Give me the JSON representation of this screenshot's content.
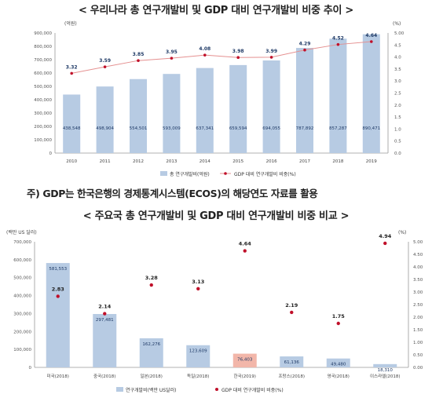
{
  "titles": {
    "top": "< 우리나라 총 연구개발비 및 GDP 대비 연구개발비 비중 추이 >",
    "bottom": "< 주요국 총 연구개발비 및 GDP 대비 연구개발비 비중 비교 >"
  },
  "note": "주) GDP는 한국은행의 경제통계시스템(ECOS)의 해당연도 자료를 활용",
  "colors": {
    "bar": "#b7cbe3",
    "bar_highlight": "#f2b6a9",
    "line": "#e59090",
    "dot": "#c0102a"
  },
  "chart_data": [
    {
      "type": "bar",
      "ylabel_left": "(억원)",
      "ylabel_right": "(%)",
      "ylim": [
        0,
        900000
      ],
      "ylim_right": [
        0,
        5.0
      ],
      "left_ticks": [
        "0",
        "100,000",
        "200,000",
        "300,000",
        "400,000",
        "500,000",
        "600,000",
        "700,000",
        "800,000",
        "900,000"
      ],
      "right_ticks": [
        "0.0",
        "0.5",
        "1.0",
        "1.5",
        "2.0",
        "2.5",
        "3.0",
        "3.5",
        "4.0",
        "4.5",
        "5.00"
      ],
      "categories": [
        "2010",
        "2011",
        "2012",
        "2013",
        "2014",
        "2015",
        "2016",
        "2017",
        "2018",
        "2019"
      ],
      "series": [
        {
          "name": "총 연구개발비(억원)",
          "values": [
            438548,
            498904,
            554501,
            593009,
            637341,
            659594,
            694055,
            787892,
            857287,
            890471
          ],
          "labels": [
            "438,548",
            "498,904",
            "554,501",
            "593,009",
            "637,341",
            "659,594",
            "694,055",
            "787,892",
            "857,287",
            "890,471"
          ]
        },
        {
          "name": "GDP 대비 연구개발비 비중(%)",
          "values": [
            3.32,
            3.59,
            3.85,
            3.95,
            4.08,
            3.98,
            3.99,
            4.29,
            4.52,
            4.64
          ],
          "labels": [
            "3.32",
            "3.59",
            "3.85",
            "3.95",
            "4.08",
            "3.98",
            "3.99",
            "4.29",
            "4.52",
            "4.64"
          ]
        }
      ],
      "grid": false,
      "legend_position": "bottom"
    },
    {
      "type": "bar",
      "ylabel_left": "(백만 US 달러)",
      "ylabel_right": "(%)",
      "ylim": [
        0,
        700000
      ],
      "ylim_right": [
        0,
        5.0
      ],
      "left_ticks": [
        "0",
        "100,000",
        "200,000",
        "300,000",
        "400,000",
        "500,000",
        "600,000",
        "700,000"
      ],
      "right_ticks": [
        "0.00",
        "0.50",
        "1.00",
        "1.50",
        "2.00",
        "2.50",
        "3.00",
        "3.50",
        "4.00",
        "4.50",
        "5.00"
      ],
      "categories": [
        "미국(2018)",
        "중국(2018)",
        "일본(2018)",
        "독일(2018)",
        "한국(2019)",
        "프랑스(2018)",
        "영국(2018)",
        "이스라엘(2018)"
      ],
      "series": [
        {
          "name": "연구개발비(백만 US달러)",
          "values": [
            581553,
            297481,
            162276,
            123609,
            76403,
            61136,
            49480,
            18310
          ],
          "labels": [
            "581,553",
            "297,481",
            "162,276",
            "123,609",
            "76,403",
            "61,136",
            "49,480",
            "18,310"
          ]
        },
        {
          "name": "GDP 대비 연구개발비 비중(%)",
          "values": [
            2.83,
            2.14,
            3.28,
            3.13,
            4.64,
            2.19,
            1.75,
            4.94
          ],
          "labels": [
            "2.83",
            "2.14",
            "3.28",
            "3.13",
            "4.64",
            "2.19",
            "1.75",
            "4.94"
          ]
        }
      ],
      "highlight_category": "한국(2019)",
      "grid": false,
      "legend_position": "bottom"
    }
  ]
}
